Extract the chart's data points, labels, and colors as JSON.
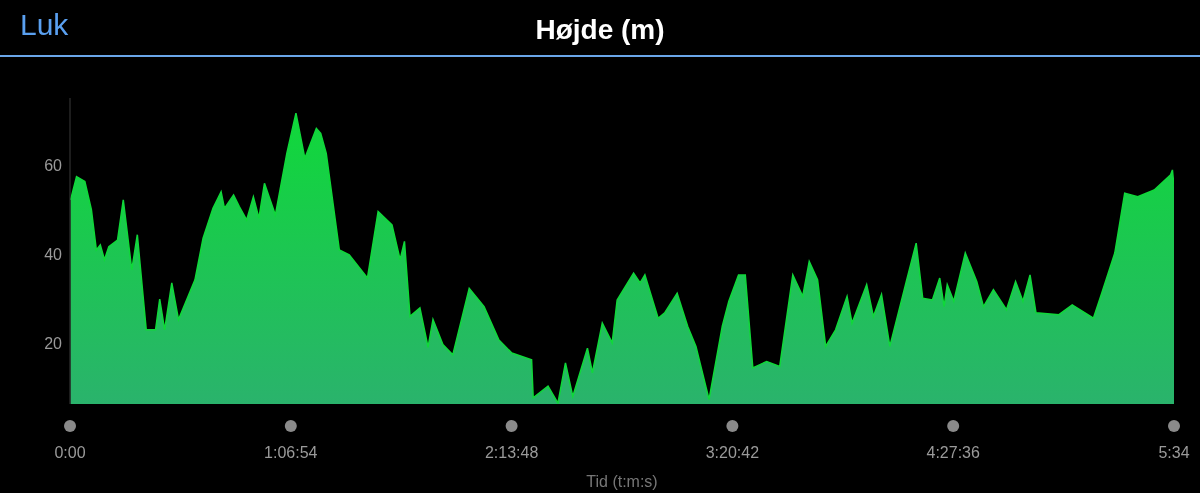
{
  "chart_data": {
    "type": "area",
    "title": "Højde (m)",
    "xlabel": "Tid (t:m:s)",
    "annotations": [
      "Luk"
    ],
    "x": [
      0.003,
      0.033,
      0.075,
      0.108,
      0.133,
      0.153,
      0.174,
      0.196,
      0.24,
      0.269,
      0.312,
      0.34,
      0.385,
      0.432,
      0.453,
      0.478,
      0.514,
      0.548,
      0.631,
      0.672,
      0.722,
      0.763,
      0.78,
      0.826,
      0.855,
      0.892,
      0.926,
      0.954,
      0.982,
      1.037,
      1.095,
      1.141,
      1.186,
      1.244,
      1.266,
      1.294,
      1.36,
      1.41,
      1.502,
      1.556,
      1.626,
      1.667,
      1.689,
      1.717,
      1.767,
      1.808,
      1.833,
      1.883,
      1.933,
      2.016,
      2.091,
      2.165,
      2.231,
      2.331,
      2.339,
      2.414,
      2.464,
      2.502,
      2.539,
      2.613,
      2.638,
      2.688,
      2.738,
      2.763,
      2.846,
      2.879,
      2.903,
      2.97,
      3.003,
      3.066,
      3.119,
      3.161,
      3.227,
      3.294,
      3.327,
      3.376,
      3.41,
      3.448,
      3.518,
      3.584,
      3.65,
      3.7,
      3.733,
      3.775,
      3.816,
      3.866,
      3.924,
      3.949,
      4.023,
      4.057,
      4.098,
      4.14,
      4.223,
      4.273,
      4.306,
      4.355,
      4.392,
      4.414,
      4.43,
      4.463,
      4.521,
      4.579,
      4.613,
      4.663,
      4.729,
      4.775,
      4.812,
      4.848,
      4.878,
      4.994,
      5.061,
      5.168,
      5.21,
      5.276,
      5.326,
      5.392,
      5.475,
      5.558,
      5.567,
      5.575
    ],
    "series": [
      {
        "color": "#10d83a",
        "values": [
          52.2,
          57.4,
          56.3,
          50,
          41,
          42.1,
          38.8,
          41.7,
          43.2,
          52.2,
          36.5,
          44.4,
          23.1,
          23.1,
          30,
          23.1,
          33.6,
          25.4,
          34.3,
          43.6,
          50.3,
          54,
          50.3,
          53.3,
          50.7,
          47.7,
          52.9,
          48.1,
          55.9,
          48.8,
          62.6,
          71.6,
          61.5,
          68.2,
          67.1,
          62.6,
          41,
          39.9,
          34.7,
          49.6,
          46.6,
          38.8,
          42.9,
          26.1,
          28,
          19.2,
          25.4,
          19.8,
          17.5,
          32.4,
          28.3,
          20.9,
          17.9,
          16.4,
          7.9,
          10.5,
          6.7,
          15.7,
          8.2,
          19,
          13.5,
          24.6,
          20.2,
          29.8,
          35.8,
          33.6,
          35.4,
          25.7,
          26.9,
          31.3,
          23.9,
          19.4,
          7.5,
          23.9,
          29.5,
          35.4,
          35.4,
          14.6,
          16,
          14.9,
          35.4,
          30.6,
          38.4,
          34.3,
          19.4,
          23.1,
          30.6,
          24.6,
          33.2,
          26.1,
          31,
          19.4,
          33.9,
          42.5,
          30.2,
          29.8,
          34.7,
          28.3,
          33.2,
          29.5,
          40.3,
          33.9,
          28.3,
          32.1,
          27.6,
          33.9,
          29.5,
          35.4,
          26.9,
          26.5,
          28.7,
          25.7,
          31.3,
          40.3,
          53.7,
          52.9,
          54.4,
          57.8,
          58.9,
          55.2
        ]
      }
    ],
    "xlim": [
      0,
      5.575
    ],
    "xticks": [
      {
        "value": 0,
        "label": "0:00"
      },
      {
        "value": 1.115,
        "label": "1:06:54"
      },
      {
        "value": 2.23,
        "label": "2:13:48"
      },
      {
        "value": 3.345,
        "label": "3:20:42"
      },
      {
        "value": 4.46,
        "label": "4:27:36"
      },
      {
        "value": 5.575,
        "label": "5:34"
      }
    ],
    "ylim": [
      6.5,
      75
    ],
    "yticks": [
      20,
      40,
      60
    ],
    "grid": false,
    "legend": false
  }
}
